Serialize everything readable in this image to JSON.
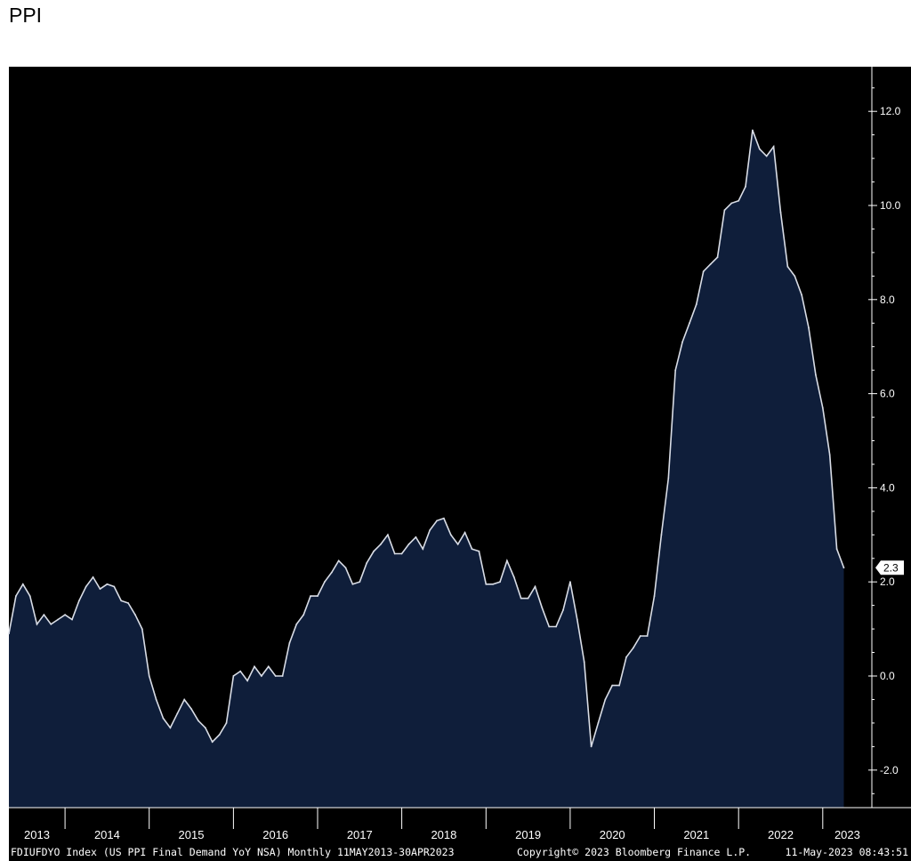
{
  "page": {
    "title": "PPI"
  },
  "colors": {
    "background": "#000000",
    "area_fill": "#0f1e3a",
    "line": "#d9dde6",
    "axis": "#ffffff",
    "last_value_box": "#ffffff"
  },
  "chart_data": {
    "type": "area",
    "ylim": [
      -2.8,
      12.8
    ],
    "y_ticks": [
      "12.0",
      "10.0",
      "8.0",
      "6.0",
      "4.0",
      "2.0",
      "0.0",
      "-2.0"
    ],
    "y_tick_values": [
      12,
      10,
      8,
      6,
      4,
      2,
      0,
      -2
    ],
    "x_range": [
      "2013-05",
      "2023-08"
    ],
    "x_year_labels": [
      "2013",
      "2014",
      "2015",
      "2016",
      "2017",
      "2018",
      "2019",
      "2020",
      "2021",
      "2022",
      "2023"
    ],
    "last_value_label": "2.3",
    "series": [
      {
        "x": [
          "2013-05",
          "2013-06",
          "2013-07",
          "2013-08",
          "2013-09",
          "2013-10",
          "2013-11",
          "2013-12",
          "2014-01",
          "2014-02",
          "2014-03",
          "2014-04",
          "2014-05",
          "2014-06",
          "2014-07",
          "2014-08",
          "2014-09",
          "2014-10",
          "2014-11",
          "2014-12",
          "2015-01",
          "2015-02",
          "2015-03",
          "2015-04",
          "2015-05",
          "2015-06",
          "2015-07",
          "2015-08",
          "2015-09",
          "2015-10",
          "2015-11",
          "2015-12",
          "2016-01",
          "2016-02",
          "2016-03",
          "2016-04",
          "2016-05",
          "2016-06",
          "2016-07",
          "2016-08",
          "2016-09",
          "2016-10",
          "2016-11",
          "2016-12",
          "2017-01",
          "2017-02",
          "2017-03",
          "2017-04",
          "2017-05",
          "2017-06",
          "2017-07",
          "2017-08",
          "2017-09",
          "2017-10",
          "2017-11",
          "2017-12",
          "2018-01",
          "2018-02",
          "2018-03",
          "2018-04",
          "2018-05",
          "2018-06",
          "2018-07",
          "2018-08",
          "2018-09",
          "2018-10",
          "2018-11",
          "2018-12",
          "2019-01",
          "2019-02",
          "2019-03",
          "2019-04",
          "2019-05",
          "2019-06",
          "2019-07",
          "2019-08",
          "2019-09",
          "2019-10",
          "2019-11",
          "2019-12",
          "2020-01",
          "2020-02",
          "2020-03",
          "2020-04",
          "2020-05",
          "2020-06",
          "2020-07",
          "2020-08",
          "2020-09",
          "2020-10",
          "2020-11",
          "2020-12",
          "2021-01",
          "2021-02",
          "2021-03",
          "2021-04",
          "2021-05",
          "2021-06",
          "2021-07",
          "2021-08",
          "2021-09",
          "2021-10",
          "2021-11",
          "2021-12",
          "2022-01",
          "2022-02",
          "2022-03",
          "2022-04",
          "2022-05",
          "2022-06",
          "2022-07",
          "2022-08",
          "2022-09",
          "2022-10",
          "2022-11",
          "2022-12",
          "2023-01",
          "2023-02",
          "2023-03",
          "2023-04"
        ],
        "y": [
          0.9,
          1.7,
          1.95,
          1.7,
          1.1,
          1.3,
          1.1,
          1.2,
          1.3,
          1.2,
          1.6,
          1.9,
          2.1,
          1.85,
          1.95,
          1.9,
          1.6,
          1.55,
          1.3,
          1.0,
          0.0,
          -0.5,
          -0.9,
          -1.1,
          -0.8,
          -0.5,
          -0.7,
          -0.95,
          -1.1,
          -1.4,
          -1.25,
          -1.0,
          0.0,
          0.1,
          -0.1,
          0.2,
          0.0,
          0.2,
          0.0,
          0.0,
          0.7,
          1.1,
          1.3,
          1.7,
          1.7,
          2.0,
          2.2,
          2.45,
          2.3,
          1.95,
          2.0,
          2.4,
          2.65,
          2.8,
          3.0,
          2.6,
          2.6,
          2.8,
          2.95,
          2.7,
          3.1,
          3.3,
          3.35,
          3.0,
          2.8,
          3.05,
          2.7,
          2.65,
          1.95,
          1.95,
          2.0,
          2.45,
          2.1,
          1.65,
          1.65,
          1.9,
          1.45,
          1.05,
          1.05,
          1.4,
          2.0,
          1.2,
          0.3,
          -1.5,
          -1.0,
          -0.5,
          -0.2,
          -0.2,
          0.4,
          0.6,
          0.85,
          0.85,
          1.7,
          3.0,
          4.2,
          6.5,
          7.1,
          7.5,
          7.9,
          8.6,
          8.75,
          8.9,
          9.9,
          10.05,
          10.1,
          10.4,
          11.6,
          11.2,
          11.05,
          11.25,
          9.85,
          8.7,
          8.5,
          8.1,
          7.4,
          6.4,
          5.7,
          4.7,
          2.7,
          2.3
        ]
      }
    ]
  },
  "footer": {
    "left_text": "FDIUFDYO Index (US PPI Final Demand YoY NSA)  Monthly 11MAY2013-30APR2023",
    "copyright": "Copyright© 2023 Bloomberg Finance L.P.",
    "timestamp": "11-May-2023 08:43:51"
  }
}
